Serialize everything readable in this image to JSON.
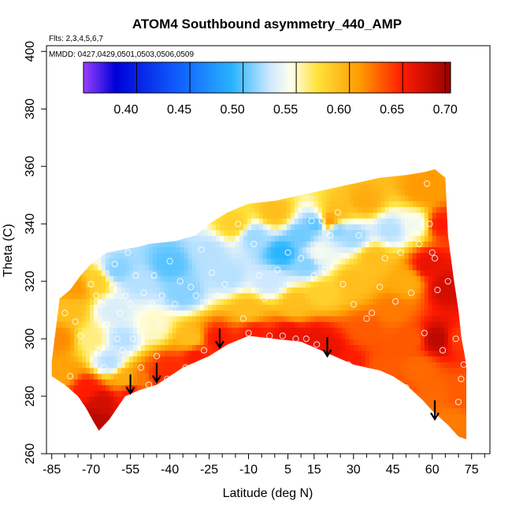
{
  "chart_data": {
    "type": "heatmap",
    "title": "ATOM4 Southbound asymmetry_440_AMP",
    "flights_label": "Flts: 2,3,4,5,6,7",
    "dates_label": "MMDD: 0427,0429,0501,0503,0506,0509",
    "xlabel": "Latitude (deg N)",
    "ylabel": "Theta (C)",
    "xlim": [
      -87,
      82
    ],
    "ylim": [
      260,
      402
    ],
    "x_ticks": [
      -85,
      -70,
      -55,
      -40,
      -25,
      -10,
      5,
      15,
      30,
      45,
      60,
      75
    ],
    "x_minor_ticks": [
      -80,
      -75,
      -65,
      -60,
      -50,
      -45,
      -35,
      -30,
      -20,
      -15,
      -5,
      0,
      10,
      20,
      25,
      35,
      40,
      50,
      55,
      65,
      70,
      80
    ],
    "y_ticks": [
      260,
      280,
      300,
      320,
      340,
      360,
      380,
      400
    ],
    "colorbar": {
      "min": 0.36,
      "max": 0.705,
      "ticks": [
        0.4,
        0.45,
        0.5,
        0.55,
        0.6,
        0.65,
        0.7
      ],
      "tick_labels": [
        "0.40",
        "0.45",
        "0.50",
        "0.55",
        "0.60",
        "0.65",
        "0.70"
      ],
      "divisions": [
        0.41,
        0.46,
        0.51,
        0.56,
        0.61,
        0.66,
        0.7
      ],
      "stops": [
        {
          "v": 0.36,
          "color": "#9b40ff"
        },
        {
          "v": 0.39,
          "color": "#0000d8"
        },
        {
          "v": 0.45,
          "color": "#1060ff"
        },
        {
          "v": 0.5,
          "color": "#28b4ff"
        },
        {
          "v": 0.535,
          "color": "#cde8ff"
        },
        {
          "v": 0.555,
          "color": "#ffffea"
        },
        {
          "v": 0.58,
          "color": "#ffe23a"
        },
        {
          "v": 0.62,
          "color": "#ff9a00"
        },
        {
          "v": 0.66,
          "color": "#ff1a00"
        },
        {
          "v": 0.705,
          "color": "#9a0000"
        }
      ]
    },
    "envelope": [
      [
        -85,
        292
      ],
      [
        -82,
        314
      ],
      [
        -78,
        317
      ],
      [
        -74,
        322
      ],
      [
        -70,
        326
      ],
      [
        -64,
        330
      ],
      [
        -58,
        331
      ],
      [
        -52,
        332
      ],
      [
        -48,
        333
      ],
      [
        -38,
        334
      ],
      [
        -30,
        336
      ],
      [
        -25,
        340
      ],
      [
        -18,
        344
      ],
      [
        -10,
        347
      ],
      [
        0,
        348
      ],
      [
        10,
        350
      ],
      [
        20,
        352
      ],
      [
        30,
        354
      ],
      [
        40,
        356
      ],
      [
        50,
        357
      ],
      [
        57,
        358
      ],
      [
        61,
        359
      ],
      [
        65,
        356
      ],
      [
        66,
        336
      ],
      [
        68,
        322
      ],
      [
        70,
        310
      ],
      [
        71,
        301
      ],
      [
        73,
        291
      ],
      [
        73,
        265
      ],
      [
        70,
        266
      ],
      [
        66,
        270
      ],
      [
        60,
        275
      ],
      [
        56,
        279
      ],
      [
        50,
        284
      ],
      [
        45,
        287
      ],
      [
        40,
        289
      ],
      [
        30,
        291
      ],
      [
        20,
        295
      ],
      [
        10,
        299
      ],
      [
        0,
        300
      ],
      [
        -10,
        301
      ],
      [
        -18,
        298
      ],
      [
        -25,
        294
      ],
      [
        -35,
        290
      ],
      [
        -45,
        284
      ],
      [
        -52,
        282
      ],
      [
        -57,
        280
      ],
      [
        -60,
        276
      ],
      [
        -63,
        272
      ],
      [
        -67,
        268
      ],
      [
        -69,
        271
      ],
      [
        -72,
        276
      ],
      [
        -75,
        280
      ],
      [
        -80,
        284
      ],
      [
        -85,
        287
      ]
    ],
    "field_nodes": [
      {
        "lat": -82,
        "theta": 300,
        "value": 0.625
      },
      {
        "lat": -80,
        "theta": 288,
        "value": 0.615
      },
      {
        "lat": -78,
        "theta": 310,
        "value": 0.6
      },
      {
        "lat": -76,
        "theta": 318,
        "value": 0.62
      },
      {
        "lat": -72,
        "theta": 283,
        "value": 0.66
      },
      {
        "lat": -68,
        "theta": 272,
        "value": 0.69
      },
      {
        "lat": -66,
        "theta": 278,
        "value": 0.68
      },
      {
        "lat": -70,
        "theta": 300,
        "value": 0.57
      },
      {
        "lat": -68,
        "theta": 320,
        "value": 0.59
      },
      {
        "lat": -62,
        "theta": 310,
        "value": 0.54
      },
      {
        "lat": -63,
        "theta": 292,
        "value": 0.53
      },
      {
        "lat": -58,
        "theta": 300,
        "value": 0.53
      },
      {
        "lat": -57,
        "theta": 286,
        "value": 0.61
      },
      {
        "lat": -55,
        "theta": 281,
        "value": 0.66
      },
      {
        "lat": -60,
        "theta": 324,
        "value": 0.52
      },
      {
        "lat": -52,
        "theta": 320,
        "value": 0.53
      },
      {
        "lat": -50,
        "theta": 286,
        "value": 0.63
      },
      {
        "lat": -46,
        "theta": 304,
        "value": 0.56
      },
      {
        "lat": -45,
        "theta": 287,
        "value": 0.655
      },
      {
        "lat": -40,
        "theta": 326,
        "value": 0.51
      },
      {
        "lat": -40,
        "theta": 290,
        "value": 0.655
      },
      {
        "lat": -35,
        "theta": 316,
        "value": 0.52
      },
      {
        "lat": -32,
        "theta": 300,
        "value": 0.6
      },
      {
        "lat": -30,
        "theta": 294,
        "value": 0.66
      },
      {
        "lat": -25,
        "theta": 330,
        "value": 0.53
      },
      {
        "lat": -22,
        "theta": 300,
        "value": 0.66
      },
      {
        "lat": -18,
        "theta": 322,
        "value": 0.53
      },
      {
        "lat": -15,
        "theta": 340,
        "value": 0.59
      },
      {
        "lat": -10,
        "theta": 310,
        "value": 0.6
      },
      {
        "lat": -8,
        "theta": 302,
        "value": 0.66
      },
      {
        "lat": -8,
        "theta": 336,
        "value": 0.525
      },
      {
        "lat": -2,
        "theta": 320,
        "value": 0.535
      },
      {
        "lat": 0,
        "theta": 344,
        "value": 0.6
      },
      {
        "lat": 3,
        "theta": 330,
        "value": 0.5
      },
      {
        "lat": 5,
        "theta": 301,
        "value": 0.67
      },
      {
        "lat": 8,
        "theta": 312,
        "value": 0.6
      },
      {
        "lat": 10,
        "theta": 336,
        "value": 0.515
      },
      {
        "lat": 12,
        "theta": 326,
        "value": 0.52
      },
      {
        "lat": 15,
        "theta": 300,
        "value": 0.67
      },
      {
        "lat": 16,
        "theta": 340,
        "value": 0.51
      },
      {
        "lat": 17,
        "theta": 330,
        "value": 0.55
      },
      {
        "lat": 18,
        "theta": 316,
        "value": 0.59
      },
      {
        "lat": 20,
        "theta": 296,
        "value": 0.67
      },
      {
        "lat": 21,
        "theta": 341,
        "value": 0.62
      },
      {
        "lat": 24,
        "theta": 338,
        "value": 0.52
      },
      {
        "lat": 25,
        "theta": 345,
        "value": 0.6
      },
      {
        "lat": 28,
        "theta": 292,
        "value": 0.66
      },
      {
        "lat": 30,
        "theta": 320,
        "value": 0.6
      },
      {
        "lat": 30,
        "theta": 336,
        "value": 0.525
      },
      {
        "lat": 34,
        "theta": 348,
        "value": 0.61
      },
      {
        "lat": 35,
        "theta": 303,
        "value": 0.64
      },
      {
        "lat": 38,
        "theta": 328,
        "value": 0.6
      },
      {
        "lat": 42,
        "theta": 290,
        "value": 0.64
      },
      {
        "lat": 44,
        "theta": 338,
        "value": 0.53
      },
      {
        "lat": 45,
        "theta": 310,
        "value": 0.63
      },
      {
        "lat": 48,
        "theta": 282,
        "value": 0.64
      },
      {
        "lat": 50,
        "theta": 320,
        "value": 0.61
      },
      {
        "lat": 52,
        "theta": 300,
        "value": 0.64
      },
      {
        "lat": 54,
        "theta": 340,
        "value": 0.55
      },
      {
        "lat": 55,
        "theta": 290,
        "value": 0.635
      },
      {
        "lat": 57,
        "theta": 352,
        "value": 0.62
      },
      {
        "lat": 59,
        "theta": 326,
        "value": 0.67
      },
      {
        "lat": 60,
        "theta": 280,
        "value": 0.635
      },
      {
        "lat": 62,
        "theta": 300,
        "value": 0.69
      },
      {
        "lat": 63,
        "theta": 340,
        "value": 0.66
      },
      {
        "lat": 66,
        "theta": 318,
        "value": 0.68
      },
      {
        "lat": 67,
        "theta": 272,
        "value": 0.63
      },
      {
        "lat": 70,
        "theta": 300,
        "value": 0.65
      },
      {
        "lat": 71,
        "theta": 280,
        "value": 0.64
      }
    ],
    "observations": [
      [
        -83,
        316
      ],
      [
        -80,
        309
      ],
      [
        -78,
        287
      ],
      [
        -76,
        306
      ],
      [
        -74,
        301
      ],
      [
        -71,
        328
      ],
      [
        -70,
        319
      ],
      [
        -68,
        315
      ],
      [
        -67,
        296
      ],
      [
        -66,
        312
      ],
      [
        -65,
        290
      ],
      [
        -64,
        305
      ],
      [
        -62,
        318
      ],
      [
        -61,
        326
      ],
      [
        -60,
        300
      ],
      [
        -59,
        309
      ],
      [
        -58,
        296
      ],
      [
        -57,
        315
      ],
      [
        -56,
        330
      ],
      [
        -55,
        312
      ],
      [
        -54,
        300
      ],
      [
        -53,
        322
      ],
      [
        -52,
        308
      ],
      [
        -51,
        290
      ],
      [
        -50,
        316
      ],
      [
        -49,
        304
      ],
      [
        -48,
        284
      ],
      [
        -47,
        312
      ],
      [
        -46,
        322
      ],
      [
        -45,
        294
      ],
      [
        -44,
        306
      ],
      [
        -43,
        315
      ],
      [
        -41,
        286
      ],
      [
        -40,
        327
      ],
      [
        -38,
        312
      ],
      [
        -36,
        320
      ],
      [
        -34,
        290
      ],
      [
        -32,
        318
      ],
      [
        -30,
        315
      ],
      [
        -28,
        331
      ],
      [
        -27,
        296
      ],
      [
        -24,
        323
      ],
      [
        -22,
        315
      ],
      [
        -19,
        319
      ],
      [
        -16,
        350
      ],
      [
        -14,
        340
      ],
      [
        -12,
        307
      ],
      [
        -10,
        302
      ],
      [
        -8,
        333
      ],
      [
        -6,
        322
      ],
      [
        -4,
        314
      ],
      [
        -2,
        301
      ],
      [
        1,
        324
      ],
      [
        3,
        301
      ],
      [
        5,
        330
      ],
      [
        8,
        300
      ],
      [
        10,
        328
      ],
      [
        12,
        300
      ],
      [
        14,
        341
      ],
      [
        15,
        322
      ],
      [
        16,
        298
      ],
      [
        17,
        332
      ],
      [
        18,
        341
      ],
      [
        19,
        324
      ],
      [
        21,
        336
      ],
      [
        24,
        344
      ],
      [
        26,
        319
      ],
      [
        28,
        291
      ],
      [
        30,
        312
      ],
      [
        32,
        336
      ],
      [
        35,
        307
      ],
      [
        37,
        309
      ],
      [
        40,
        318
      ],
      [
        42,
        328
      ],
      [
        44,
        280
      ],
      [
        46,
        313
      ],
      [
        48,
        330
      ],
      [
        50,
        283
      ],
      [
        52,
        316
      ],
      [
        55,
        333
      ],
      [
        57,
        302
      ],
      [
        58,
        354
      ],
      [
        59,
        340
      ],
      [
        60,
        330
      ],
      [
        61,
        328
      ],
      [
        62,
        317
      ],
      [
        64,
        296
      ],
      [
        66,
        320
      ],
      [
        69,
        300
      ],
      [
        70,
        278
      ],
      [
        71,
        286
      ],
      [
        72,
        291
      ]
    ],
    "arrows": [
      {
        "lat": -55,
        "theta": 281
      },
      {
        "lat": -45,
        "theta": 285
      },
      {
        "lat": -21,
        "theta": 297
      },
      {
        "lat": 20,
        "theta": 294
      },
      {
        "lat": 61,
        "theta": 272
      }
    ]
  }
}
